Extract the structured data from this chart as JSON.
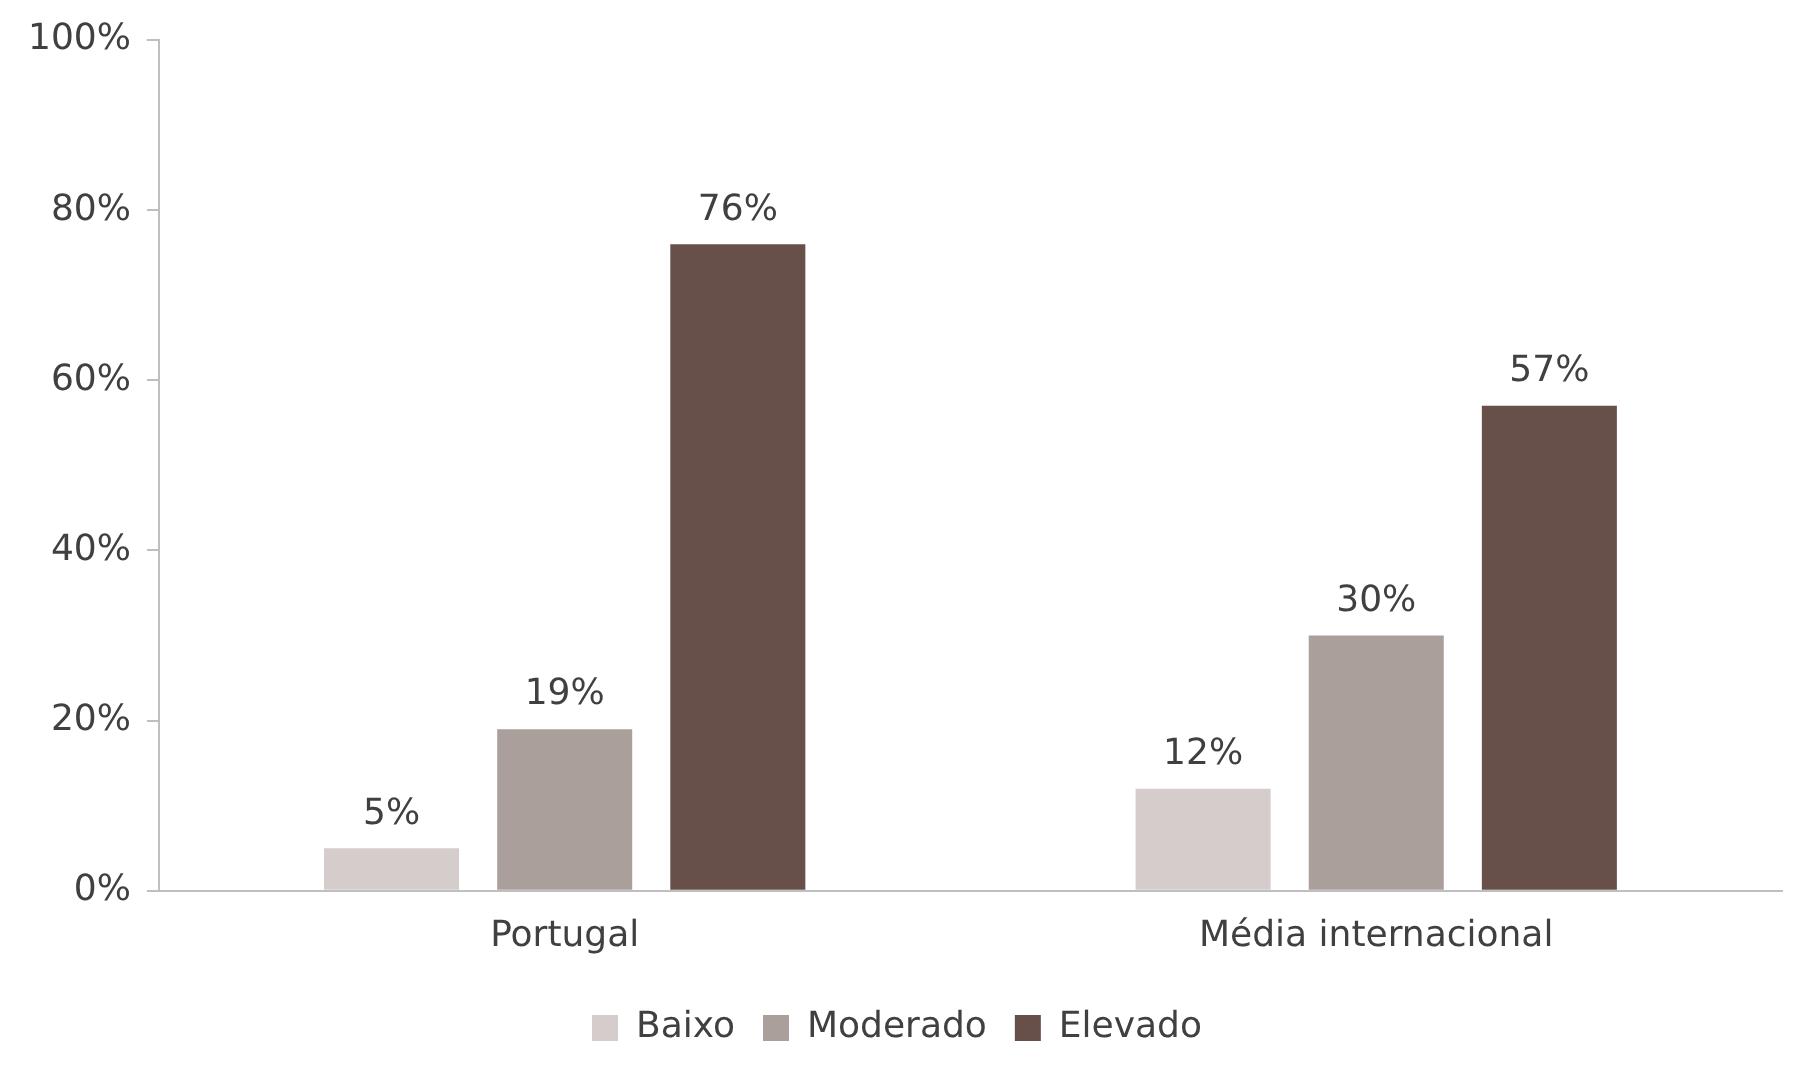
{
  "chart_data": {
    "type": "bar",
    "categories": [
      "Portugal",
      "Média internacional"
    ],
    "series": [
      {
        "name": "Baixo",
        "color": "#d5cdcb",
        "values": [
          5,
          12
        ],
        "value_labels": [
          "5%",
          "12%"
        ]
      },
      {
        "name": "Moderado",
        "color": "#ab9f9b",
        "values": [
          19,
          30
        ],
        "value_labels": [
          "19%",
          "30%"
        ]
      },
      {
        "name": "Elevado",
        "color": "#67504a",
        "values": [
          76,
          57
        ],
        "value_labels": [
          "76%",
          "57%"
        ]
      }
    ],
    "ylim": [
      0,
      100
    ],
    "yticks": [
      {
        "value": 0,
        "label": "0%"
      },
      {
        "value": 20,
        "label": "20%"
      },
      {
        "value": 40,
        "label": "40%"
      },
      {
        "value": 60,
        "label": "60%"
      },
      {
        "value": 80,
        "label": "80%"
      },
      {
        "value": 100,
        "label": "100%"
      }
    ],
    "grid": false,
    "legend": "bottom"
  }
}
